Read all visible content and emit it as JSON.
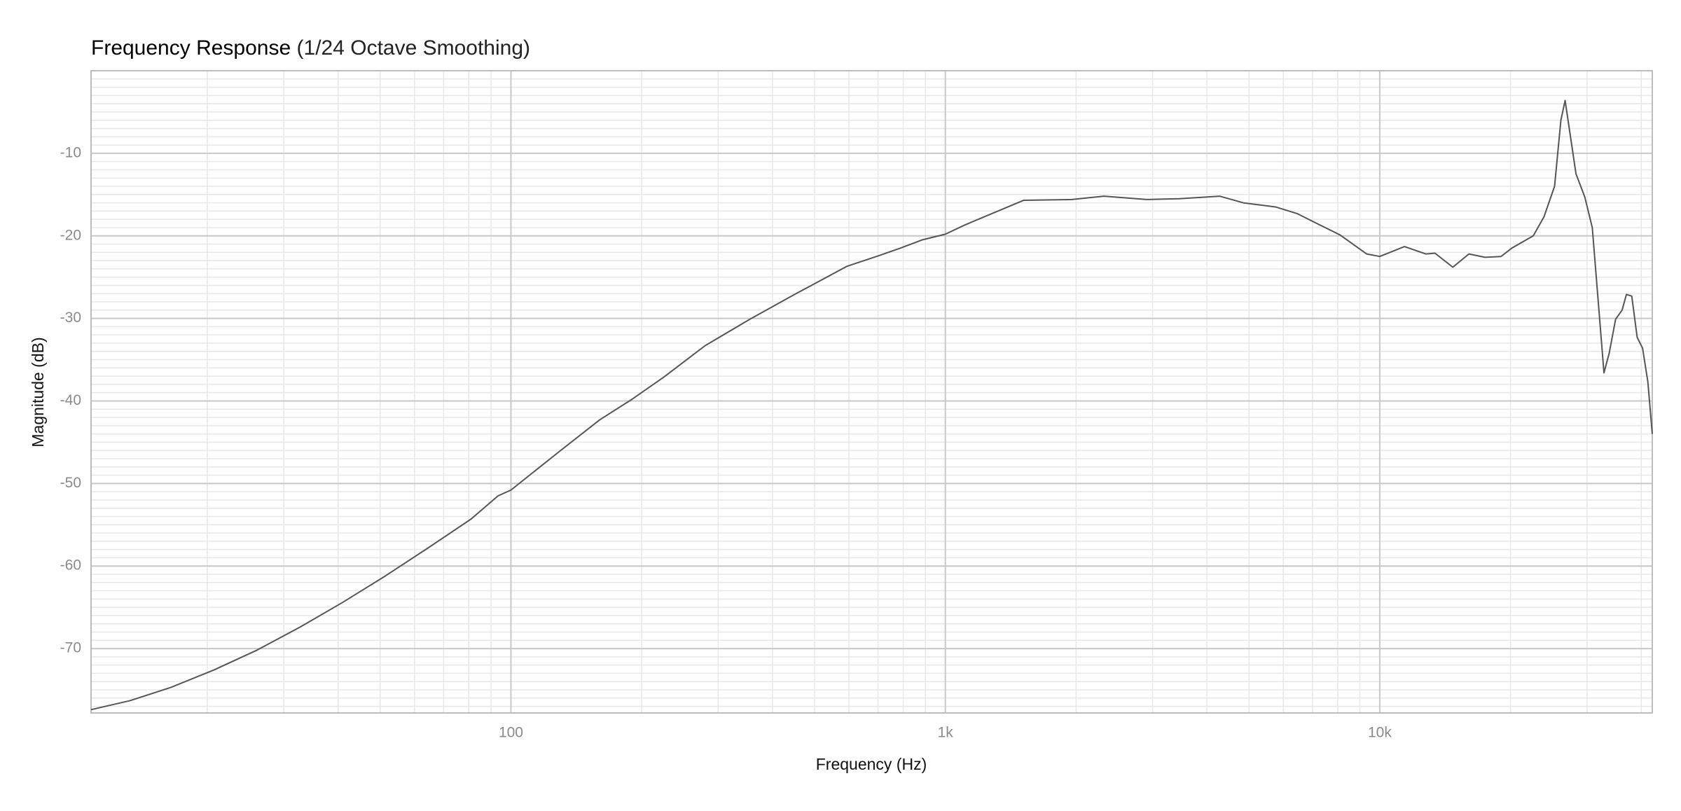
{
  "chart_data": {
    "type": "line",
    "title": "Frequency Response",
    "subtitle": "(1/24 Octave Smoothing)",
    "x_label": "Frequency (Hz)",
    "y_label": "Magnitude (dB)",
    "xscale": "log",
    "grid": true,
    "color": "#555555",
    "x": [
      10.8,
      13.3,
      16.5,
      20.7,
      26,
      32.7,
      41,
      51.4,
      64.5,
      81,
      93.4,
      100,
      128,
      160,
      190,
      225,
      280,
      355,
      446,
      500,
      593,
      703,
      787,
      883,
      1000,
      1107,
      1241,
      1514,
      1954,
      2317,
      2911,
      3452,
      4285,
      4853,
      5754,
      6451,
      7228,
      8106,
      9333,
      10000,
      11400,
      12770,
      13400,
      14730,
      16040,
      17470,
      19020,
      20120,
      22560,
      23880,
      25260,
      26120,
      26710,
      28300,
      29650,
      30850,
      32820,
      33750,
      34910,
      36130,
      36970,
      38030,
      39140,
      40270,
      41420,
      42400
    ],
    "values": [
      -77.4,
      -76.3,
      -74.7,
      -72.6,
      -70.2,
      -67.4,
      -64.4,
      -61.2,
      -57.8,
      -54.3,
      -51.5,
      -50.8,
      -46.3,
      -42.3,
      -39.8,
      -37.1,
      -33.3,
      -30.1,
      -27.2,
      -25.8,
      -23.7,
      -22.4,
      -21.5,
      -20.5,
      -19.8,
      -18.7,
      -17.6,
      -15.7,
      -15.6,
      -15.2,
      -15.6,
      -15.5,
      -15.2,
      -16.0,
      -16.5,
      -17.3,
      -18.6,
      -19.9,
      -22.2,
      -22.5,
      -21.3,
      -22.2,
      -22.1,
      -23.8,
      -22.2,
      -22.6,
      -22.5,
      -21.5,
      -20.0,
      -17.7,
      -14.0,
      -6.0,
      -3.6,
      -12.5,
      -15.3,
      -19.0,
      -36.6,
      -34.2,
      -30.1,
      -29.0,
      -27.1,
      -27.3,
      -32.3,
      -33.6,
      -37.7,
      -44.0
    ],
    "xlim": [
      10.8,
      42400
    ],
    "ylim": [
      -77.8,
      0
    ],
    "xticks": [
      100,
      {
        "value": 1000,
        "label": "1k"
      },
      {
        "value": 10000,
        "label": "10k"
      }
    ],
    "xminorticks": [
      20,
      30,
      40,
      50,
      60,
      70,
      80,
      90,
      200,
      300,
      400,
      500,
      600,
      700,
      800,
      900,
      2000,
      3000,
      4000,
      5000,
      6000,
      7000,
      8000,
      9000,
      20000,
      30000,
      40000
    ],
    "yticks": [
      -70,
      -60,
      -50,
      -40,
      -30,
      -20,
      -10
    ],
    "yminorticks": [
      -77,
      -76,
      -75,
      -74,
      -73,
      -72,
      -71,
      -69,
      -68,
      -67,
      -66,
      -65,
      -64,
      -63,
      -62,
      -61,
      -59,
      -58,
      -57,
      -56,
      -55,
      -54,
      -53,
      -52,
      -51,
      -49,
      -48,
      -47,
      -46,
      -45,
      -44,
      -43,
      -42,
      -41,
      -39,
      -38,
      -37,
      -36,
      -35,
      -34,
      -33,
      -32,
      -31,
      -29,
      -28,
      -27,
      -26,
      -25,
      -24,
      -23,
      -22,
      -21,
      -19,
      -18,
      -17,
      -16,
      -15,
      -14,
      -13,
      -12,
      -11,
      -9,
      -8,
      -7,
      -6,
      -5,
      -4,
      -3,
      -2,
      -1
    ]
  }
}
